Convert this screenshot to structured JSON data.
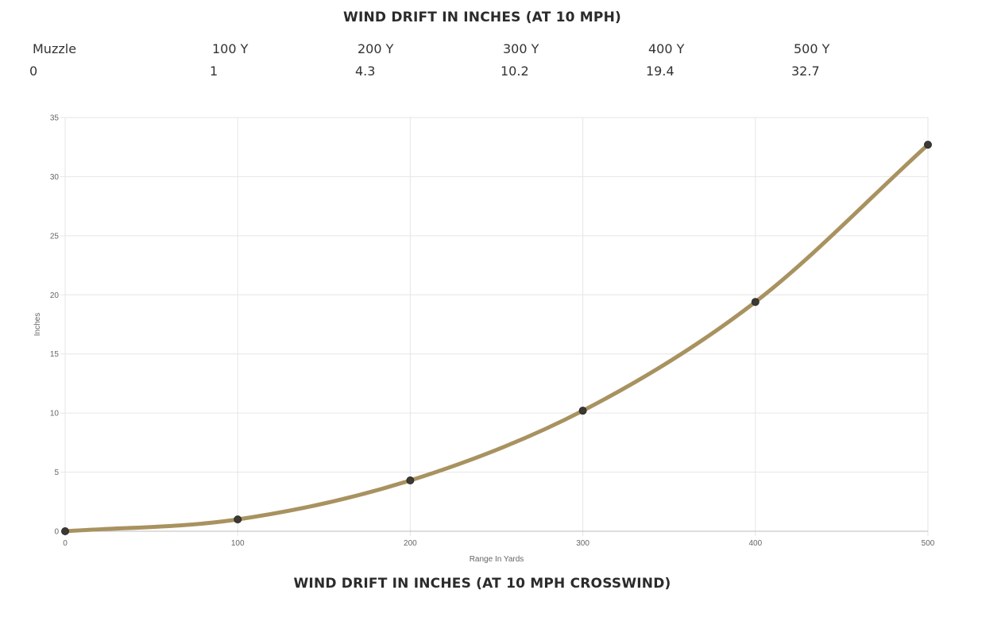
{
  "table": {
    "title": "WIND DRIFT IN INCHES (AT 10 MPH)",
    "headers": [
      "Muzzle",
      "100 Y",
      "200 Y",
      "300 Y",
      "400 Y",
      "500 Y"
    ],
    "values": [
      "0",
      "1",
      "4.3",
      "10.2",
      "19.4",
      "32.7"
    ]
  },
  "chart_data": {
    "type": "line",
    "title": "WIND DRIFT IN INCHES (AT 10 MPH CROSSWIND)",
    "xlabel": "Range In Yards",
    "ylabel": "Inches",
    "x": [
      0,
      100,
      200,
      300,
      400,
      500
    ],
    "series": [
      {
        "values": [
          0,
          1,
          4.3,
          10.2,
          19.4,
          32.7
        ],
        "color": "#a89260"
      }
    ],
    "xlim": [
      0,
      500
    ],
    "ylim": [
      0,
      35
    ],
    "xticks": [
      "0",
      "100",
      "200",
      "300",
      "400",
      "500"
    ],
    "yticks": [
      "0",
      "5",
      "10",
      "15",
      "20",
      "25",
      "30",
      "35"
    ],
    "grid": true,
    "point_color": "#3d3a35",
    "grid_color": "#e6e6e6",
    "axis_color": "#bbbbbb"
  }
}
